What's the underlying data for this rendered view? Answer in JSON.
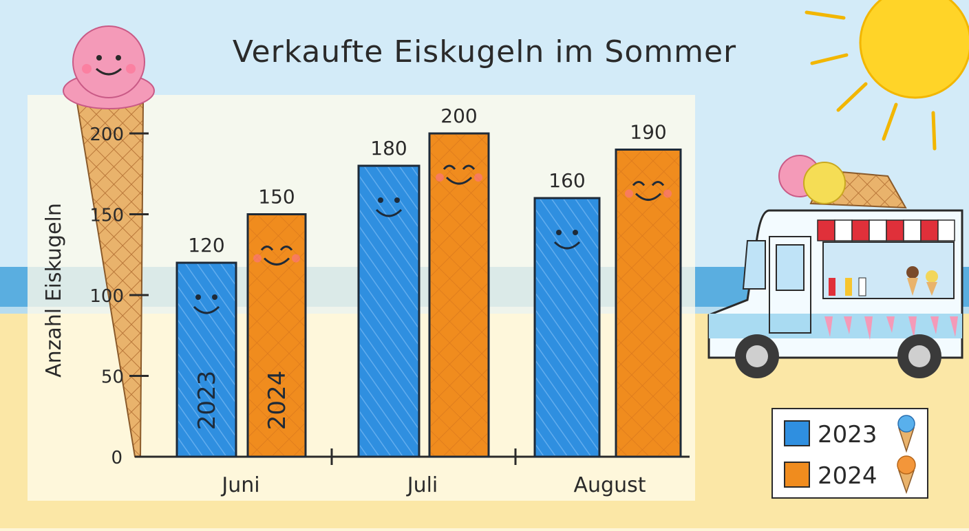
{
  "colors": {
    "sky": "#cfe9f7",
    "sea": "#5aaee0",
    "sand": "#fbe7a6",
    "bar_2023": "#2f8fe0",
    "bar_2024": "#f08c1e",
    "sun": "#ffd428",
    "cone": "#e9b36c",
    "scoop": "#f49ab8"
  },
  "icons": [
    "ice-cream-cone-icon",
    "sun-icon",
    "ice-cream-truck-icon",
    "smiley-face-icon"
  ],
  "chart_data": {
    "type": "bar",
    "title": "Verkaufte Eiskugeln im Sommer",
    "xlabel": "",
    "ylabel": "Anzahl Eiskugeln",
    "categories": [
      "Juni",
      "Juli",
      "August"
    ],
    "series": [
      {
        "name": "2023",
        "values": [
          120,
          180,
          160
        ]
      },
      {
        "name": "2024",
        "values": [
          150,
          200,
          190
        ]
      }
    ],
    "ylim": [
      0,
      200
    ],
    "yticks": [
      0,
      50,
      100,
      150,
      200
    ],
    "bar_text": [
      "2023",
      "2024"
    ],
    "legend_position": "bottom-right",
    "grid": false
  }
}
